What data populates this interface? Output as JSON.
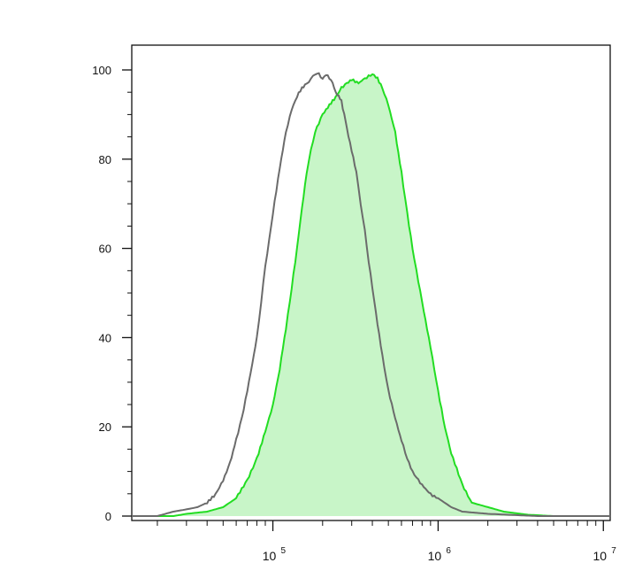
{
  "chart_data": {
    "type": "area",
    "title": "",
    "xlabel": "",
    "ylabel": "",
    "x_scale": "log",
    "xlim": [
      14000,
      11000000
    ],
    "ylim": [
      0,
      100
    ],
    "grid": false,
    "legend": "none",
    "y_ticks": [
      "0",
      "20",
      "40",
      "60",
      "80",
      "100"
    ],
    "x_ticks": [
      {
        "value": 100000,
        "base": "10",
        "exp": "5"
      },
      {
        "value": 1000000,
        "base": "10",
        "exp": "6"
      },
      {
        "value": 10000000,
        "base": "10",
        "exp": "7"
      }
    ],
    "series": [
      {
        "style": "outline",
        "color": "#6b6b6b",
        "x": [
          14000,
          20000,
          25000,
          30000,
          35000,
          40000,
          45000,
          50000,
          55000,
          60000,
          65000,
          70000,
          75000,
          80000,
          85000,
          90000,
          95000,
          100000,
          110000,
          120000,
          130000,
          140000,
          150000,
          160000,
          170000,
          180000,
          190000,
          200000,
          210000,
          220000,
          230000,
          240000,
          250000,
          260000,
          270000,
          280000,
          300000,
          320000,
          340000,
          360000,
          380000,
          400000,
          430000,
          460000,
          500000,
          550000,
          600000,
          650000,
          700000,
          800000,
          900000,
          1000000,
          1200000,
          1400000,
          2000000,
          4000000,
          11000000
        ],
        "y": [
          0,
          0,
          1,
          1.5,
          2,
          3,
          5,
          8,
          12,
          17,
          22,
          28,
          34,
          40,
          48,
          56,
          62,
          68,
          78,
          86,
          91,
          94,
          96,
          97,
          98,
          99,
          99,
          98,
          99,
          98,
          97,
          95,
          94,
          93,
          90,
          87,
          82,
          77,
          70,
          64,
          57,
          51,
          43,
          36,
          28,
          22,
          17,
          13,
          10,
          7,
          5,
          4,
          2,
          1,
          0.5,
          0,
          0
        ]
      },
      {
        "style": "filled",
        "color": "#22dd22",
        "fill": "#c8f5c8",
        "x": [
          14000,
          25000,
          30000,
          40000,
          50000,
          60000,
          70000,
          80000,
          90000,
          100000,
          110000,
          120000,
          130000,
          140000,
          150000,
          160000,
          170000,
          180000,
          200000,
          220000,
          240000,
          260000,
          280000,
          300000,
          330000,
          360000,
          400000,
          430000,
          460000,
          500000,
          550000,
          600000,
          650000,
          700000,
          800000,
          900000,
          1000000,
          1100000,
          1200000,
          1400000,
          1600000,
          2000000,
          2500000,
          3500000,
          5000000,
          11000000
        ],
        "y": [
          0,
          0,
          0.5,
          1,
          2,
          4,
          8,
          13,
          19,
          25,
          33,
          42,
          51,
          60,
          69,
          77,
          82,
          86,
          90,
          92,
          94,
          96,
          97,
          98,
          97,
          98,
          99,
          98,
          96,
          92,
          86,
          77,
          68,
          60,
          48,
          38,
          28,
          20,
          14,
          7,
          3,
          2,
          1,
          0.3,
          0,
          0
        ]
      }
    ]
  }
}
